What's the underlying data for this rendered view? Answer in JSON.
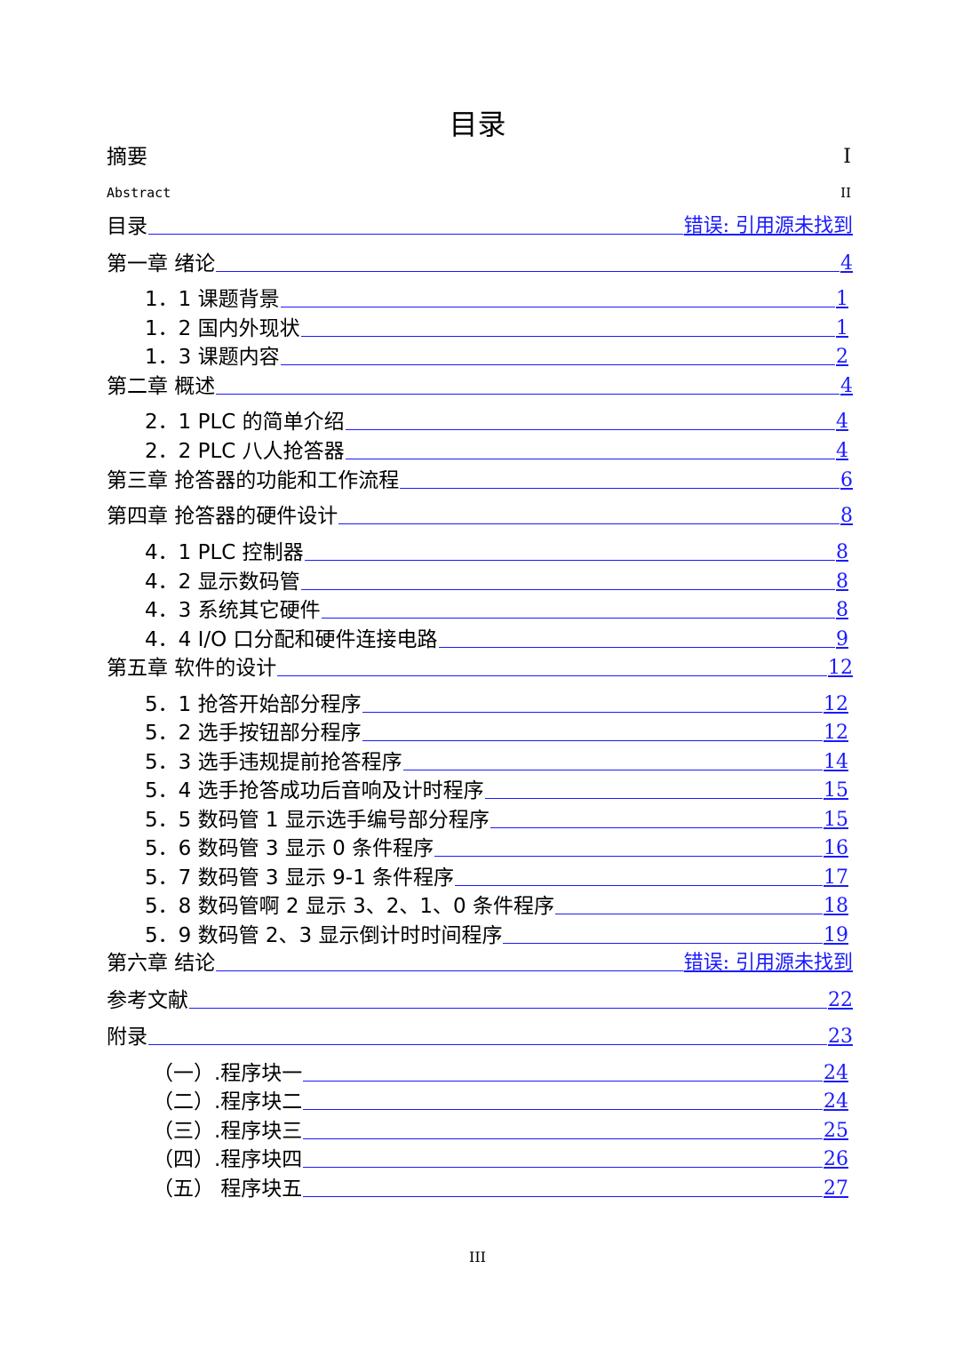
{
  "title": "目录",
  "entries": [
    {
      "label": "摘要",
      "page": "I",
      "plain": true
    },
    {
      "label": "Abstract",
      "page": "II",
      "plain": true,
      "small": true
    },
    {
      "label": "目录",
      "page": "错误: 引用源未找到"
    },
    {
      "label": "第一章  绪论",
      "page": "4"
    },
    {
      "label": "1．1  课题背景",
      "page": "1"
    },
    {
      "label": "1．2  国内外现状",
      "page": "1"
    },
    {
      "label": "1．3  课题内容",
      "page": "2"
    },
    {
      "label": "第二章  概述",
      "page": "4"
    },
    {
      "label": "2．1  PLC 的简单介绍",
      "page": "4"
    },
    {
      "label": "2．2  PLC 八人抢答器",
      "page": "4"
    },
    {
      "label": "第三章  抢答器的功能和工作流程",
      "page": "6"
    },
    {
      "label": "第四章  抢答器的硬件设计",
      "page": "8"
    },
    {
      "label": "4．1  PLC 控制器",
      "page": "8"
    },
    {
      "label": "4．2 显示数码管",
      "page": "8"
    },
    {
      "label": "4．3 系统其它硬件",
      "page": "8"
    },
    {
      "label": "4．4  I/O 口分配和硬件连接电路",
      "page": "9"
    },
    {
      "label": "第五章  软件的设计",
      "page": "12"
    },
    {
      "label": "5．1 抢答开始部分程序",
      "page": "12"
    },
    {
      "label": "5．2 选手按钮部分程序",
      "page": "12"
    },
    {
      "label": "5．3 选手违规提前抢答程序",
      "page": "14"
    },
    {
      "label": "5．4 选手抢答成功后音响及计时程序",
      "page": "15"
    },
    {
      "label": "5．5 数码管 1 显示选手编号部分程序",
      "page": "15"
    },
    {
      "label": "5．6 数码管 3 显示 0 条件程序",
      "page": "16"
    },
    {
      "label": "5．7 数码管 3 显示 9-1 条件程序",
      "page": "17"
    },
    {
      "label": "5．8 数码管啊 2 显示 3、2、1、0 条件程序",
      "page": "18"
    },
    {
      "label": "5．9 数码管 2、3 显示倒计时时间程序",
      "page": "19"
    },
    {
      "label": "第六章  结论",
      "page": "错误: 引用源未找到"
    },
    {
      "label": "参考文献",
      "page": "22"
    },
    {
      "label": "附录",
      "page": "23"
    },
    {
      "label": "（一）.程序块一",
      "page": "24"
    },
    {
      "label": "（二）.程序块二",
      "page": "24"
    },
    {
      "label": "（三）.程序块三",
      "page": "25"
    },
    {
      "label": "（四）.程序块四",
      "page": "26"
    },
    {
      "label": "（五）  程序块五",
      "page": "27"
    }
  ],
  "footer": "III"
}
